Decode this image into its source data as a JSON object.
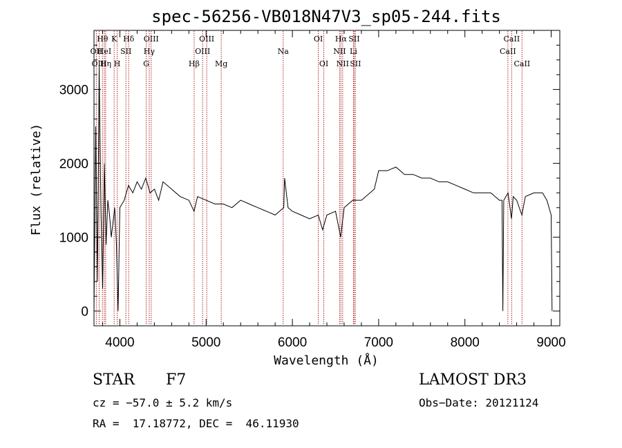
{
  "chart_data": {
    "type": "line",
    "title": "spec-56256-VB018N47V3_sp05-244.fits",
    "xlabel": "Wavelength (Å)",
    "ylabel": "Flux (relative)",
    "xlim": [
      3700,
      9100
    ],
    "ylim": [
      -200,
      3800
    ],
    "xticks": [
      4000,
      5000,
      6000,
      7000,
      8000,
      9000
    ],
    "yticks": [
      0,
      1000,
      2000,
      3000
    ],
    "series": [
      {
        "name": "flux",
        "x": [
          3700,
          3720,
          3740,
          3760,
          3780,
          3800,
          3820,
          3840,
          3860,
          3880,
          3900,
          3920,
          3940,
          3960,
          3980,
          4000,
          4050,
          4100,
          4150,
          4200,
          4250,
          4300,
          4350,
          4400,
          4450,
          4500,
          4600,
          4700,
          4800,
          4860,
          4900,
          5000,
          5100,
          5200,
          5300,
          5400,
          5500,
          5600,
          5700,
          5800,
          5900,
          5910,
          5950,
          6000,
          6100,
          6200,
          6300,
          6350,
          6400,
          6500,
          6560,
          6600,
          6700,
          6800,
          6900,
          6950,
          7000,
          7100,
          7200,
          7300,
          7400,
          7500,
          7600,
          7700,
          7800,
          7900,
          8000,
          8100,
          8200,
          8300,
          8400,
          8430,
          8440,
          8450,
          8500,
          8540,
          8560,
          8600,
          8660,
          8700,
          8800,
          8900,
          8950,
          9000,
          9010
        ],
        "y": [
          0,
          2500,
          400,
          3300,
          1400,
          300,
          2000,
          900,
          1500,
          1300,
          1000,
          1200,
          1400,
          900,
          0,
          1400,
          1500,
          1700,
          1600,
          1750,
          1650,
          1800,
          1600,
          1650,
          1500,
          1750,
          1650,
          1550,
          1500,
          1350,
          1550,
          1500,
          1450,
          1450,
          1400,
          1500,
          1450,
          1400,
          1350,
          1300,
          1400,
          1800,
          1400,
          1350,
          1300,
          1250,
          1300,
          1100,
          1300,
          1350,
          1000,
          1400,
          1500,
          1500,
          1600,
          1650,
          1900,
          1900,
          1950,
          1850,
          1850,
          1800,
          1800,
          1750,
          1750,
          1700,
          1650,
          1600,
          1600,
          1600,
          1500,
          1500,
          0,
          1500,
          1600,
          1250,
          1550,
          1500,
          1300,
          1550,
          1600,
          1600,
          1500,
          1300,
          0
        ]
      }
    ],
    "lines": [
      {
        "label": "OII",
        "wavelength": 3727,
        "row": 1
      },
      {
        "label": "OIII",
        "wavelength": 3760,
        "row": 2
      },
      {
        "label": "Hθ",
        "wavelength": 3798,
        "row": 0
      },
      {
        "label": "HeI",
        "wavelength": 3820,
        "row": 1
      },
      {
        "label": "Hη",
        "wavelength": 3835,
        "row": 2
      },
      {
        "label": "K",
        "wavelength": 3934,
        "row": 0
      },
      {
        "label": "SII",
        "wavelength": 4070,
        "row": 1
      },
      {
        "label": "H",
        "wavelength": 3969,
        "row": 2
      },
      {
        "label": "Hδ",
        "wavelength": 4102,
        "row": 0
      },
      {
        "label": "OIII",
        "wavelength": 4363,
        "row": 0
      },
      {
        "label": "Hγ",
        "wavelength": 4340,
        "row": 1
      },
      {
        "label": "G",
        "wavelength": 4305,
        "row": 2
      },
      {
        "label": "OIII",
        "wavelength": 5007,
        "row": 0
      },
      {
        "label": "OIII",
        "wavelength": 4959,
        "row": 1
      },
      {
        "label": "Hβ",
        "wavelength": 4861,
        "row": 2
      },
      {
        "label": "Mg",
        "wavelength": 5175,
        "row": 2
      },
      {
        "label": "Na",
        "wavelength": 5893,
        "row": 1
      },
      {
        "label": "OI",
        "wavelength": 6300,
        "row": 0
      },
      {
        "label": "OI",
        "wavelength": 6364,
        "row": 2
      },
      {
        "label": "Hα",
        "wavelength": 6563,
        "row": 0
      },
      {
        "label": "NII",
        "wavelength": 6548,
        "row": 1
      },
      {
        "label": "NII",
        "wavelength": 6583,
        "row": 2
      },
      {
        "label": "SII",
        "wavelength": 6716,
        "row": 0
      },
      {
        "label": "Li",
        "wavelength": 6708,
        "row": 1
      },
      {
        "label": "SII",
        "wavelength": 6731,
        "row": 2
      },
      {
        "label": "CaII",
        "wavelength": 8542,
        "row": 0
      },
      {
        "label": "CaII",
        "wavelength": 8498,
        "row": 1
      },
      {
        "label": "CaII",
        "wavelength": 8662,
        "row": 2
      }
    ]
  },
  "info": {
    "object_class": "STAR",
    "subclass": "F7",
    "survey": "LAMOST DR3",
    "redshift": "cz = −57.0 ± 5.2 km/s",
    "obs_date": "Obs−Date: 20121124",
    "coords": "RA =  17.18772, DEC =  46.11930"
  },
  "colors": {
    "line_marker": "#b22222",
    "spectrum": "#000000",
    "axes": "#000000"
  }
}
